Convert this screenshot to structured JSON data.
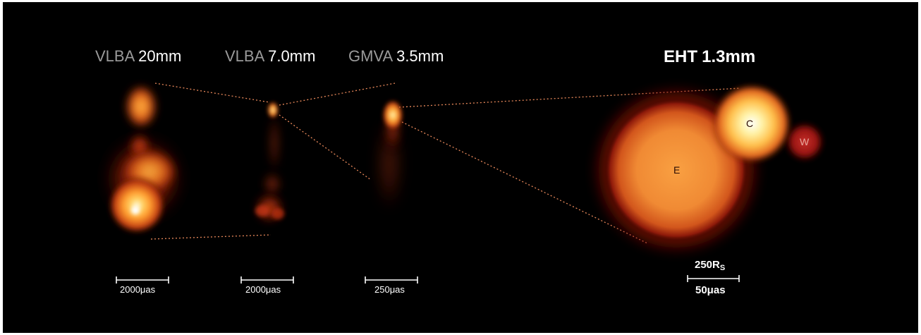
{
  "panels": [
    {
      "instrument": "VLBA",
      "wavelength": "20mm",
      "scale_label": "2000μas"
    },
    {
      "instrument": "VLBA",
      "wavelength": "7.0mm",
      "scale_label": "2000μas"
    },
    {
      "instrument": "GMVA",
      "wavelength": "3.5mm",
      "scale_label": "250μas"
    },
    {
      "instrument": "EHT",
      "wavelength": "1.3mm",
      "scale_label_top": "250R",
      "scale_label_top_sub": "S",
      "scale_label_bottom": "50μas"
    }
  ],
  "components": {
    "core": "C",
    "east": "E",
    "west": "W"
  },
  "colors": {
    "background": "#000000",
    "glow_hot": "#fffbe0",
    "glow_mid": "#ff9b2e",
    "glow_edge": "#8c1808",
    "connector": "#e8885a"
  }
}
